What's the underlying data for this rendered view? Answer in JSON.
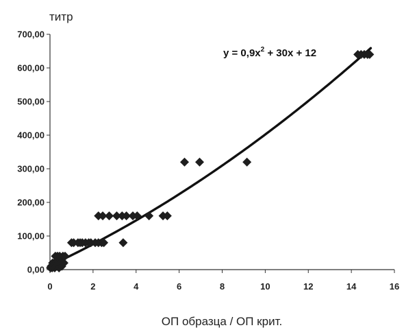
{
  "chart_data": {
    "type": "scatter",
    "ylabel": "титр",
    "xlabel": "ОП образца / ОП крит.",
    "xlim": [
      0,
      16
    ],
    "ylim": [
      0,
      700
    ],
    "x_ticks": [
      "0",
      "2",
      "4",
      "6",
      "8",
      "10",
      "12",
      "14",
      "16"
    ],
    "y_ticks": [
      "0,00",
      "100,00",
      "200,00",
      "300,00",
      "400,00",
      "500,00",
      "600,00",
      "700,00"
    ],
    "grid": false,
    "trendline": {
      "type": "polynomial",
      "coefficients": [
        12,
        30,
        0.9
      ],
      "equation": {
        "prefix": "y = 0,9x",
        "exponent": "2",
        "suffix": " + 30x + 12"
      }
    },
    "series": [
      {
        "points": [
          [
            0.02,
            5
          ],
          [
            0.05,
            10
          ],
          [
            0.1,
            5
          ],
          [
            0.12,
            20
          ],
          [
            0.15,
            10
          ],
          [
            0.2,
            20
          ],
          [
            0.22,
            5
          ],
          [
            0.25,
            40
          ],
          [
            0.3,
            20
          ],
          [
            0.32,
            10
          ],
          [
            0.35,
            40
          ],
          [
            0.4,
            20
          ],
          [
            0.42,
            5
          ],
          [
            0.45,
            40
          ],
          [
            0.5,
            20
          ],
          [
            0.55,
            10
          ],
          [
            0.6,
            40
          ],
          [
            0.65,
            20
          ],
          [
            0.7,
            40
          ],
          [
            1.0,
            80
          ],
          [
            1.1,
            80
          ],
          [
            1.3,
            80
          ],
          [
            1.4,
            80
          ],
          [
            1.5,
            80
          ],
          [
            1.65,
            80
          ],
          [
            1.8,
            80
          ],
          [
            1.9,
            80
          ],
          [
            2.1,
            80
          ],
          [
            2.25,
            80
          ],
          [
            2.4,
            80
          ],
          [
            2.5,
            80
          ],
          [
            2.25,
            160
          ],
          [
            2.45,
            160
          ],
          [
            2.75,
            160
          ],
          [
            3.1,
            160
          ],
          [
            3.35,
            160
          ],
          [
            3.55,
            160
          ],
          [
            3.85,
            160
          ],
          [
            4.05,
            160
          ],
          [
            4.6,
            160
          ],
          [
            5.25,
            160
          ],
          [
            5.45,
            160
          ],
          [
            3.4,
            80
          ],
          [
            6.25,
            320
          ],
          [
            6.95,
            320
          ],
          [
            9.15,
            320
          ],
          [
            14.3,
            640
          ],
          [
            14.45,
            640
          ],
          [
            14.6,
            640
          ],
          [
            14.75,
            640
          ],
          [
            14.85,
            640
          ]
        ]
      }
    ]
  }
}
